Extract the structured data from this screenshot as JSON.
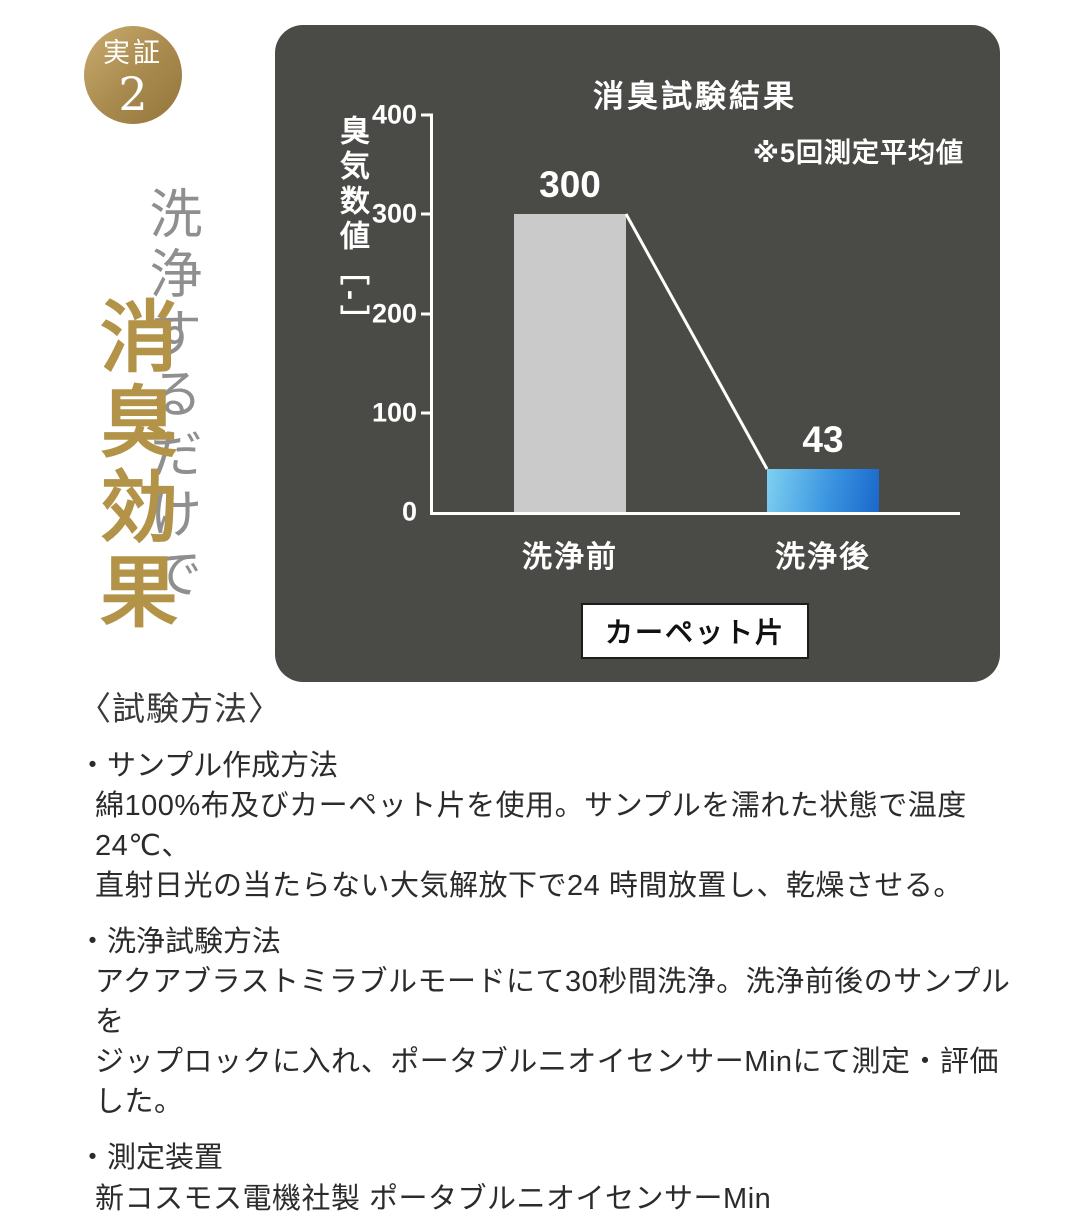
{
  "badge": {
    "label": "実証",
    "number": "2"
  },
  "headline": {
    "gray": "洗浄するだけで",
    "gold": "消臭効果"
  },
  "chart_data": {
    "type": "bar",
    "title": "消臭試験結果",
    "note": "※5回測定平均値",
    "ylabel": "臭気数値［-］",
    "categories": [
      "洗浄前",
      "洗浄後"
    ],
    "values": [
      300,
      43
    ],
    "ylim": [
      0,
      400
    ],
    "yticks": [
      "400",
      "300",
      "200",
      "100",
      "0"
    ],
    "sample_label": "カーペット片",
    "grid": false,
    "legend_position": "none",
    "bar_colors": [
      "#cacaca",
      "linear-gradient #7fd0f1→#1a67cb"
    ]
  },
  "test_method": {
    "heading": "〈試験方法〉",
    "sections": [
      {
        "title": "・サンプル作成方法",
        "lines": [
          "綿100%布及びカーペット片を使用。サンプルを濡れた状態で温度24℃、",
          "直射日光の当たらない大気解放下で24 時間放置し、乾燥させる。"
        ]
      },
      {
        "title": "・洗浄試験方法",
        "lines": [
          "アクアブラストミラブルモードにて30秒間洗浄。洗浄前後のサンプルを",
          "ジップロックに入れ、ポータブルニオイセンサーMinにて測定・評価した。"
        ]
      },
      {
        "title": "・測定装置",
        "lines": [
          "新コスモス電機社製 ポータブルニオイセンサーMin"
        ]
      }
    ]
  },
  "colors": {
    "gold": "#b29347",
    "panel": "#4a4a47",
    "bar_before": "#cacaca",
    "bar_after_start": "#7fd0f1",
    "bar_after_end": "#1a67cb",
    "background": "#ffffff"
  }
}
